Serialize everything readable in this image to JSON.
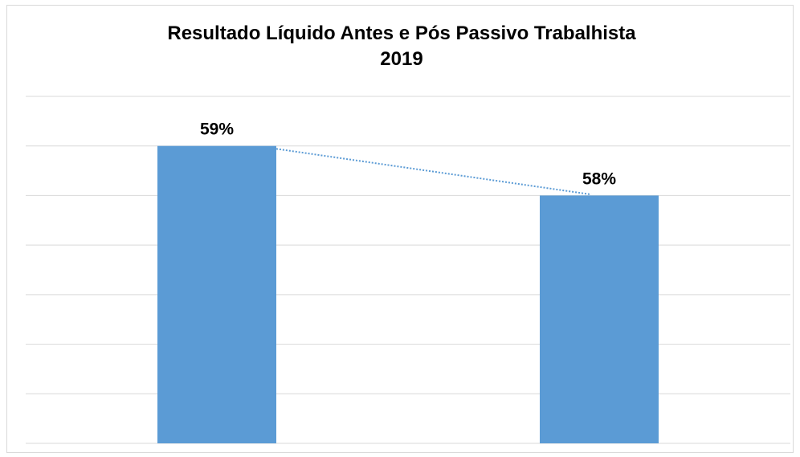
{
  "chart_data": {
    "type": "bar",
    "title": "Resultado Líquido Antes e Pós Passivo Trabalhista",
    "subtitle": "2019",
    "categories": [
      "",
      ""
    ],
    "values": [
      59,
      58
    ],
    "value_labels": [
      "59%",
      "58%"
    ],
    "ylim": [
      53,
      60
    ],
    "grid": true,
    "trendline": "linear",
    "colors": {
      "bar": "#5b9bd5",
      "trendline": "#5b9bd5",
      "grid": "#d9d9d9"
    }
  }
}
